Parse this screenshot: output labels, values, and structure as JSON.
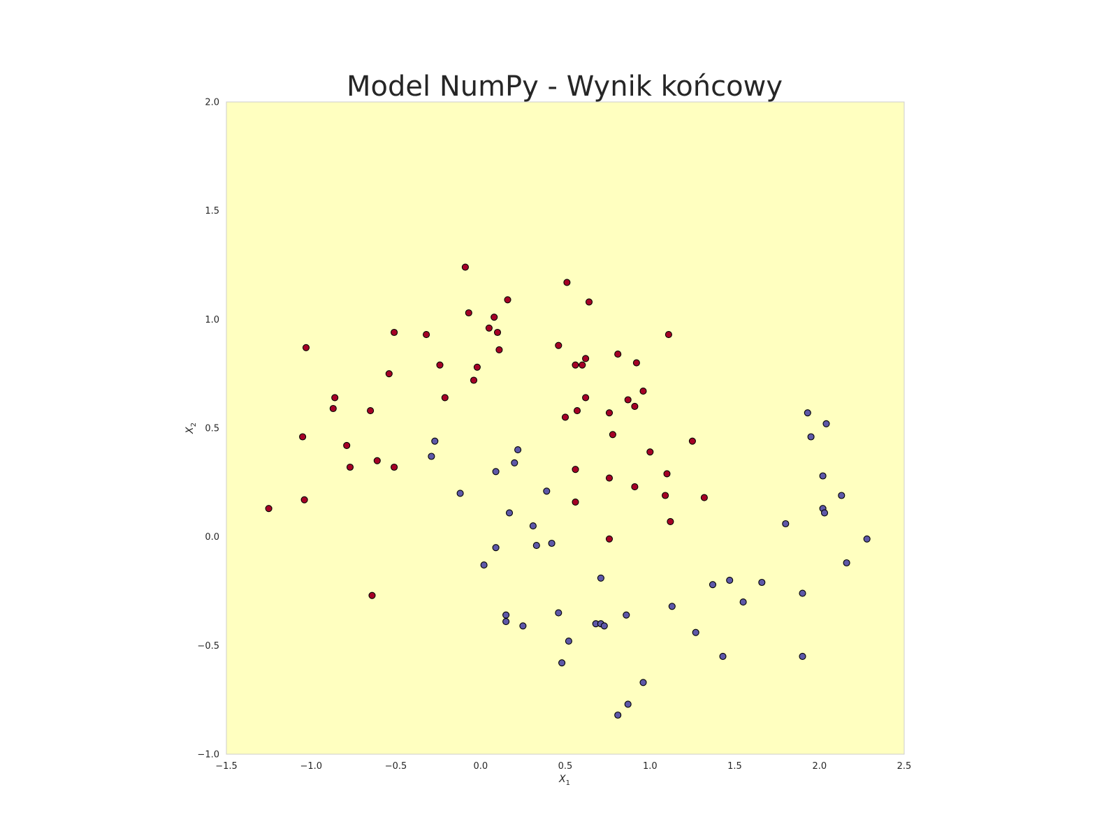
{
  "chart_data": {
    "type": "scatter",
    "title": "Model NumPy - Wynik końcowy",
    "xlabel": "X",
    "xlabel_sub": "1",
    "ylabel": "X",
    "ylabel_sub": "2",
    "xlim": [
      -1.5,
      2.5
    ],
    "ylim": [
      -1.0,
      2.0
    ],
    "xticks": [
      -1.5,
      -1.0,
      -0.5,
      0.0,
      0.5,
      1.0,
      1.5,
      2.0,
      2.5
    ],
    "xtick_labels": [
      "−1.5",
      "−1.0",
      "−0.5",
      "0.0",
      "0.5",
      "1.0",
      "1.5",
      "2.0",
      "2.5"
    ],
    "yticks": [
      -1.0,
      -0.5,
      0.0,
      0.5,
      1.0,
      1.5,
      2.0
    ],
    "ytick_labels": [
      "−1.0",
      "−0.5",
      "0.0",
      "0.5",
      "1.0",
      "1.5",
      "2.0"
    ],
    "grid": false,
    "background_color": "#ffffc0",
    "colors": {
      "class0": "#a50026",
      "class1": "#5e58a8",
      "edge": "#000000",
      "spine": "#cccccc"
    },
    "series": [
      {
        "class": 0,
        "points": [
          [
            -1.25,
            0.13
          ],
          [
            -1.03,
            0.87
          ],
          [
            -1.04,
            0.17
          ],
          [
            -1.05,
            0.46
          ],
          [
            -0.86,
            0.64
          ],
          [
            -0.87,
            0.59
          ],
          [
            -0.79,
            0.42
          ],
          [
            -0.77,
            0.32
          ],
          [
            -0.65,
            0.58
          ],
          [
            -0.61,
            0.35
          ],
          [
            -0.54,
            0.75
          ],
          [
            -0.51,
            0.94
          ],
          [
            -0.51,
            0.32
          ],
          [
            -0.64,
            -0.27
          ],
          [
            -0.32,
            0.93
          ],
          [
            -0.24,
            0.79
          ],
          [
            -0.21,
            0.64
          ],
          [
            -0.09,
            1.24
          ],
          [
            -0.07,
            1.03
          ],
          [
            -0.04,
            0.72
          ],
          [
            -0.02,
            0.78
          ],
          [
            0.05,
            0.96
          ],
          [
            0.08,
            1.01
          ],
          [
            0.1,
            0.94
          ],
          [
            0.11,
            0.86
          ],
          [
            0.16,
            1.09
          ],
          [
            0.46,
            0.88
          ],
          [
            0.51,
            1.17
          ],
          [
            0.64,
            1.08
          ],
          [
            0.56,
            0.79
          ],
          [
            0.6,
            0.79
          ],
          [
            0.62,
            0.82
          ],
          [
            0.62,
            0.64
          ],
          [
            0.57,
            0.58
          ],
          [
            0.5,
            0.55
          ],
          [
            0.76,
            0.57
          ],
          [
            0.81,
            0.84
          ],
          [
            0.92,
            0.8
          ],
          [
            0.87,
            0.63
          ],
          [
            0.91,
            0.6
          ],
          [
            0.96,
            0.67
          ],
          [
            0.78,
            0.47
          ],
          [
            1.11,
            0.93
          ],
          [
            1.25,
            0.44
          ],
          [
            1.0,
            0.39
          ],
          [
            1.1,
            0.29
          ],
          [
            0.56,
            0.31
          ],
          [
            0.76,
            0.27
          ],
          [
            0.91,
            0.23
          ],
          [
            1.09,
            0.19
          ],
          [
            1.32,
            0.18
          ],
          [
            0.56,
            0.16
          ],
          [
            1.12,
            0.07
          ],
          [
            0.76,
            -0.01
          ]
        ]
      },
      {
        "class": 1,
        "points": [
          [
            -0.27,
            0.44
          ],
          [
            -0.29,
            0.37
          ],
          [
            -0.12,
            0.2
          ],
          [
            0.09,
            0.3
          ],
          [
            0.2,
            0.34
          ],
          [
            0.22,
            0.4
          ],
          [
            0.17,
            0.11
          ],
          [
            0.31,
            0.05
          ],
          [
            0.39,
            0.21
          ],
          [
            0.42,
            -0.03
          ],
          [
            0.33,
            -0.04
          ],
          [
            0.09,
            -0.05
          ],
          [
            0.02,
            -0.13
          ],
          [
            0.15,
            -0.36
          ],
          [
            0.15,
            -0.39
          ],
          [
            0.25,
            -0.41
          ],
          [
            0.46,
            -0.35
          ],
          [
            0.52,
            -0.48
          ],
          [
            0.48,
            -0.58
          ],
          [
            0.68,
            -0.4
          ],
          [
            0.71,
            -0.4
          ],
          [
            0.73,
            -0.41
          ],
          [
            0.71,
            -0.19
          ],
          [
            0.86,
            -0.36
          ],
          [
            0.96,
            -0.67
          ],
          [
            0.87,
            -0.77
          ],
          [
            0.81,
            -0.82
          ],
          [
            1.13,
            -0.32
          ],
          [
            1.27,
            -0.44
          ],
          [
            1.37,
            -0.22
          ],
          [
            1.47,
            -0.2
          ],
          [
            1.43,
            -0.55
          ],
          [
            1.55,
            -0.3
          ],
          [
            1.66,
            -0.21
          ],
          [
            1.8,
            0.06
          ],
          [
            1.9,
            -0.26
          ],
          [
            1.9,
            -0.55
          ],
          [
            1.93,
            0.57
          ],
          [
            1.95,
            0.46
          ],
          [
            2.04,
            0.52
          ],
          [
            2.02,
            0.28
          ],
          [
            2.02,
            0.13
          ],
          [
            2.03,
            0.11
          ],
          [
            2.13,
            0.19
          ],
          [
            2.16,
            -0.12
          ],
          [
            2.28,
            -0.01
          ]
        ]
      }
    ]
  }
}
